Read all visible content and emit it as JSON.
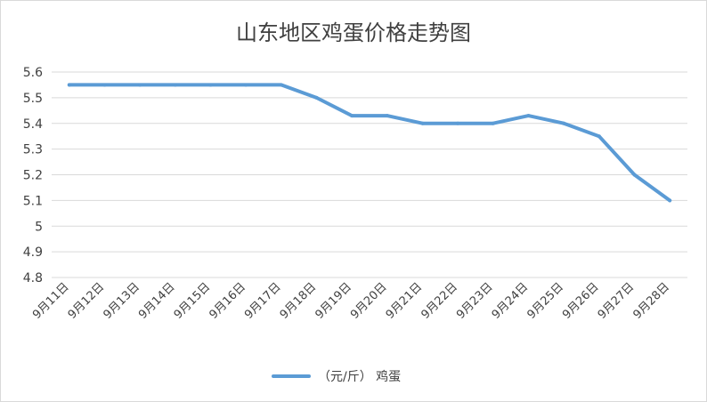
{
  "chart_data": {
    "type": "line",
    "title": "山东地区鸡蛋价格走势图",
    "categories": [
      "9月11日",
      "9月12日",
      "9月13日",
      "9月14日",
      "9月15日",
      "9月16日",
      "9月17日",
      "9月18日",
      "9月19日",
      "9月20日",
      "9月21日",
      "9月22日",
      "9月23日",
      "9月24日",
      "9月25日",
      "9月26日",
      "9月27日",
      "9月28日"
    ],
    "series": [
      {
        "name": "（元/斤） 鸡蛋",
        "values": [
          5.55,
          5.55,
          5.55,
          5.55,
          5.55,
          5.55,
          5.55,
          5.5,
          5.43,
          5.43,
          5.4,
          5.4,
          5.4,
          5.43,
          5.4,
          5.35,
          5.2,
          5.1
        ],
        "color": "#5b9bd5"
      }
    ],
    "ylim": [
      4.8,
      5.6
    ],
    "yticks": [
      "5.6",
      "5.5",
      "5.4",
      "5.3",
      "5.2",
      "5.1",
      "5",
      "4.9",
      "4.8"
    ],
    "grid": true,
    "legend_position": "bottom"
  }
}
